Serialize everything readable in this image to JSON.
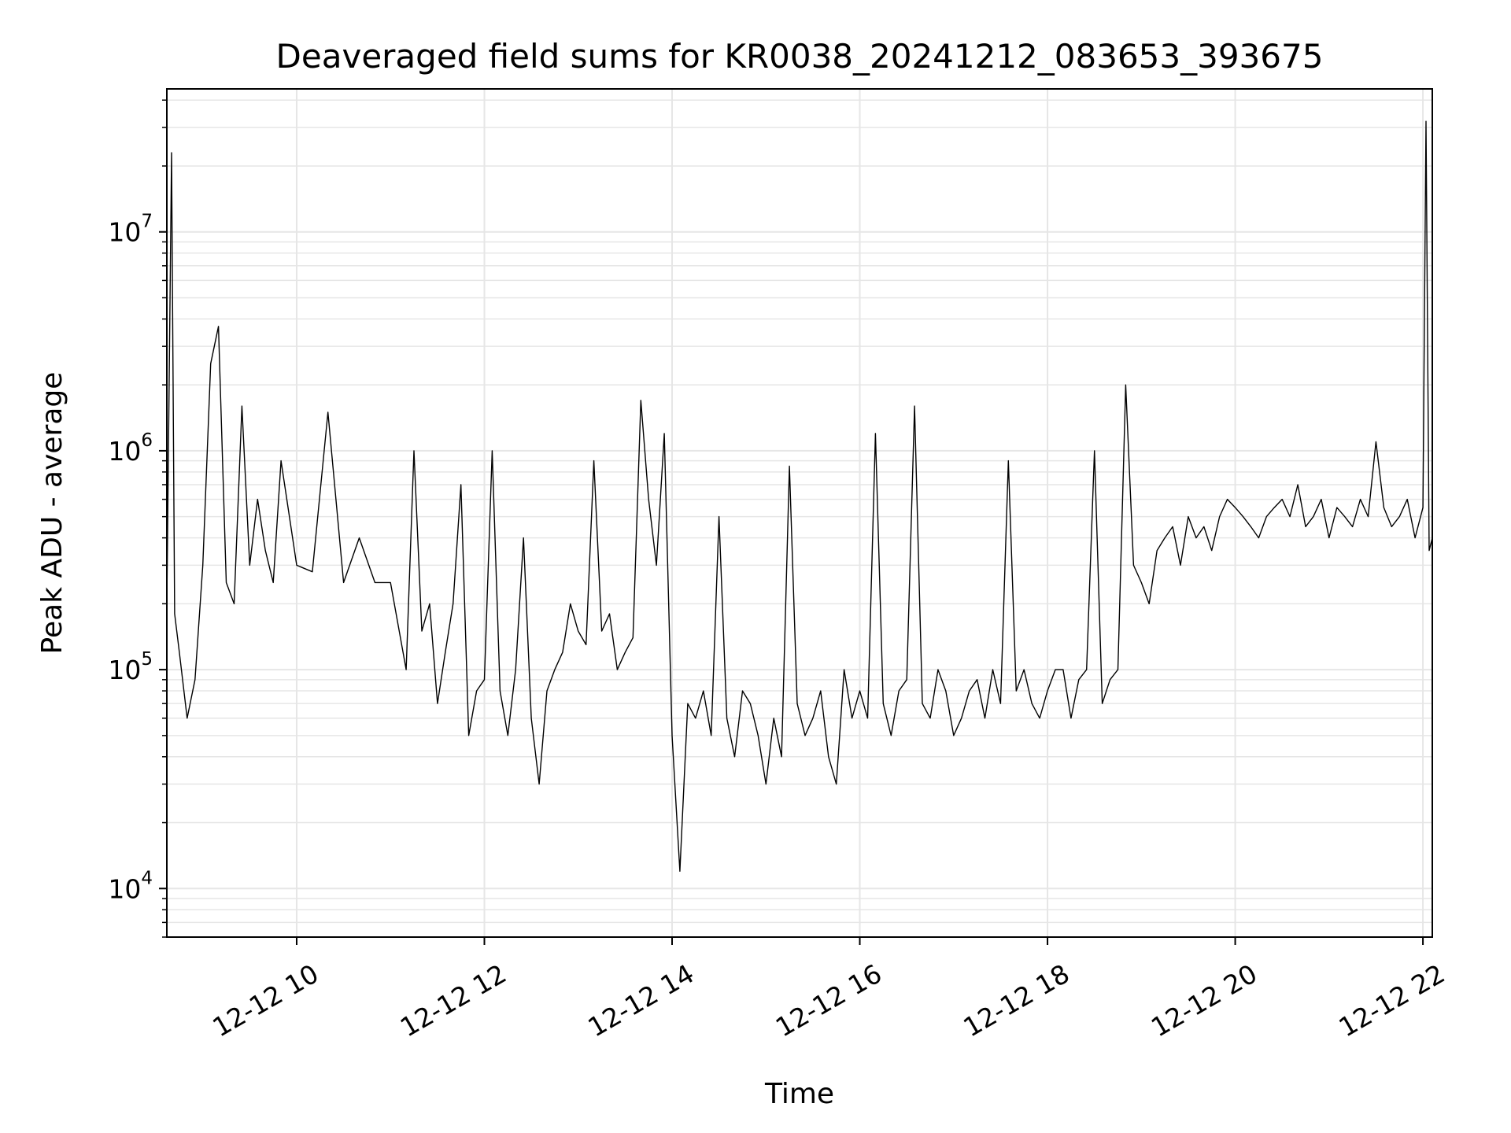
{
  "chart_data": {
    "type": "line",
    "title": "Deaveraged field sums for KR0038_20241212_083653_393675",
    "xlabel": "Time",
    "ylabel": "Peak ADU - average",
    "x_range": [
      "2024-12-12 08:37",
      "2024-12-12 22:06"
    ],
    "yscale": "log",
    "ylim": [
      6000,
      45000000
    ],
    "grid": true,
    "line_color": "#000000",
    "grid_color": "#e6e6e6",
    "xticks": [
      {
        "value": "2024-12-12 10:00",
        "label": "12-12 10"
      },
      {
        "value": "2024-12-12 12:00",
        "label": "12-12 12"
      },
      {
        "value": "2024-12-12 14:00",
        "label": "12-12 14"
      },
      {
        "value": "2024-12-12 16:00",
        "label": "12-12 16"
      },
      {
        "value": "2024-12-12 18:00",
        "label": "12-12 18"
      },
      {
        "value": "2024-12-12 20:00",
        "label": "12-12 20"
      },
      {
        "value": "2024-12-12 22:00",
        "label": "12-12 22"
      }
    ],
    "yticks": [
      {
        "value": 10000,
        "base": "10",
        "exp": "4"
      },
      {
        "value": 100000,
        "base": "10",
        "exp": "5"
      },
      {
        "value": 1000000,
        "base": "10",
        "exp": "6"
      },
      {
        "value": 10000000,
        "base": "10",
        "exp": "7"
      }
    ],
    "series": [
      {
        "x": [
          "2024-12-12 08:37",
          "2024-12-12 08:40",
          "2024-12-12 08:42",
          "2024-12-12 08:45",
          "2024-12-12 08:50",
          "2024-12-12 08:55",
          "2024-12-12 09:00",
          "2024-12-12 09:05",
          "2024-12-12 09:10",
          "2024-12-12 09:15",
          "2024-12-12 09:20",
          "2024-12-12 09:25",
          "2024-12-12 09:30",
          "2024-12-12 09:35",
          "2024-12-12 09:40",
          "2024-12-12 09:45",
          "2024-12-12 09:50",
          "2024-12-12 10:00",
          "2024-12-12 10:10",
          "2024-12-12 10:20",
          "2024-12-12 10:30",
          "2024-12-12 10:40",
          "2024-12-12 10:50",
          "2024-12-12 11:00",
          "2024-12-12 11:10",
          "2024-12-12 11:15",
          "2024-12-12 11:20",
          "2024-12-12 11:25",
          "2024-12-12 11:30",
          "2024-12-12 11:35",
          "2024-12-12 11:40",
          "2024-12-12 11:45",
          "2024-12-12 11:50",
          "2024-12-12 11:55",
          "2024-12-12 12:00",
          "2024-12-12 12:05",
          "2024-12-12 12:10",
          "2024-12-12 12:15",
          "2024-12-12 12:20",
          "2024-12-12 12:25",
          "2024-12-12 12:30",
          "2024-12-12 12:35",
          "2024-12-12 12:40",
          "2024-12-12 12:45",
          "2024-12-12 12:50",
          "2024-12-12 12:55",
          "2024-12-12 13:00",
          "2024-12-12 13:05",
          "2024-12-12 13:10",
          "2024-12-12 13:15",
          "2024-12-12 13:20",
          "2024-12-12 13:25",
          "2024-12-12 13:30",
          "2024-12-12 13:35",
          "2024-12-12 13:40",
          "2024-12-12 13:45",
          "2024-12-12 13:50",
          "2024-12-12 13:55",
          "2024-12-12 14:00",
          "2024-12-12 14:05",
          "2024-12-12 14:10",
          "2024-12-12 14:15",
          "2024-12-12 14:20",
          "2024-12-12 14:25",
          "2024-12-12 14:30",
          "2024-12-12 14:35",
          "2024-12-12 14:40",
          "2024-12-12 14:45",
          "2024-12-12 14:50",
          "2024-12-12 14:55",
          "2024-12-12 15:00",
          "2024-12-12 15:05",
          "2024-12-12 15:10",
          "2024-12-12 15:15",
          "2024-12-12 15:20",
          "2024-12-12 15:25",
          "2024-12-12 15:30",
          "2024-12-12 15:35",
          "2024-12-12 15:40",
          "2024-12-12 15:45",
          "2024-12-12 15:50",
          "2024-12-12 15:55",
          "2024-12-12 16:00",
          "2024-12-12 16:05",
          "2024-12-12 16:10",
          "2024-12-12 16:15",
          "2024-12-12 16:20",
          "2024-12-12 16:25",
          "2024-12-12 16:30",
          "2024-12-12 16:35",
          "2024-12-12 16:40",
          "2024-12-12 16:45",
          "2024-12-12 16:50",
          "2024-12-12 16:55",
          "2024-12-12 17:00",
          "2024-12-12 17:05",
          "2024-12-12 17:10",
          "2024-12-12 17:15",
          "2024-12-12 17:20",
          "2024-12-12 17:25",
          "2024-12-12 17:30",
          "2024-12-12 17:35",
          "2024-12-12 17:40",
          "2024-12-12 17:45",
          "2024-12-12 17:50",
          "2024-12-12 17:55",
          "2024-12-12 18:00",
          "2024-12-12 18:05",
          "2024-12-12 18:10",
          "2024-12-12 18:15",
          "2024-12-12 18:20",
          "2024-12-12 18:25",
          "2024-12-12 18:30",
          "2024-12-12 18:35",
          "2024-12-12 18:40",
          "2024-12-12 18:45",
          "2024-12-12 18:50",
          "2024-12-12 18:55",
          "2024-12-12 19:00",
          "2024-12-12 19:05",
          "2024-12-12 19:10",
          "2024-12-12 19:15",
          "2024-12-12 19:20",
          "2024-12-12 19:25",
          "2024-12-12 19:30",
          "2024-12-12 19:35",
          "2024-12-12 19:40",
          "2024-12-12 19:45",
          "2024-12-12 19:50",
          "2024-12-12 19:55",
          "2024-12-12 20:00",
          "2024-12-12 20:05",
          "2024-12-12 20:10",
          "2024-12-12 20:15",
          "2024-12-12 20:20",
          "2024-12-12 20:25",
          "2024-12-12 20:30",
          "2024-12-12 20:35",
          "2024-12-12 20:40",
          "2024-12-12 20:45",
          "2024-12-12 20:50",
          "2024-12-12 20:55",
          "2024-12-12 21:00",
          "2024-12-12 21:05",
          "2024-12-12 21:10",
          "2024-12-12 21:15",
          "2024-12-12 21:20",
          "2024-12-12 21:25",
          "2024-12-12 21:30",
          "2024-12-12 21:35",
          "2024-12-12 21:40",
          "2024-12-12 21:45",
          "2024-12-12 21:50",
          "2024-12-12 21:55",
          "2024-12-12 22:00",
          "2024-12-12 22:02",
          "2024-12-12 22:04",
          "2024-12-12 22:06"
        ],
        "y": [
          200000,
          23000000,
          180000,
          120000,
          60000,
          90000,
          300000,
          2500000,
          3700000,
          250000,
          200000,
          1600000,
          300000,
          600000,
          350000,
          250000,
          900000,
          300000,
          280000,
          1500000,
          250000,
          400000,
          250000,
          250000,
          100000,
          1000000,
          150000,
          200000,
          70000,
          120000,
          200000,
          700000,
          50000,
          80000,
          90000,
          1000000,
          80000,
          50000,
          100000,
          400000,
          60000,
          30000,
          80000,
          100000,
          120000,
          200000,
          150000,
          130000,
          900000,
          150000,
          180000,
          100000,
          120000,
          140000,
          1700000,
          600000,
          300000,
          1200000,
          50000,
          12000,
          70000,
          60000,
          80000,
          50000,
          500000,
          60000,
          40000,
          80000,
          70000,
          50000,
          30000,
          60000,
          40000,
          850000,
          70000,
          50000,
          60000,
          80000,
          40000,
          30000,
          100000,
          60000,
          80000,
          60000,
          1200000,
          70000,
          50000,
          80000,
          90000,
          1600000,
          70000,
          60000,
          100000,
          80000,
          50000,
          60000,
          80000,
          90000,
          60000,
          100000,
          70000,
          900000,
          80000,
          100000,
          70000,
          60000,
          80000,
          100000,
          100000,
          60000,
          90000,
          100000,
          1000000,
          70000,
          90000,
          100000,
          2000000,
          300000,
          250000,
          200000,
          350000,
          400000,
          450000,
          300000,
          500000,
          400000,
          450000,
          350000,
          500000,
          600000,
          550000,
          500000,
          450000,
          400000,
          500000,
          550000,
          600000,
          500000,
          700000,
          450000,
          500000,
          600000,
          400000,
          550000,
          500000,
          450000,
          600000,
          500000,
          1100000,
          550000,
          450000,
          500000,
          600000,
          400000,
          550000,
          32000000,
          350000,
          400000
        ]
      }
    ]
  }
}
